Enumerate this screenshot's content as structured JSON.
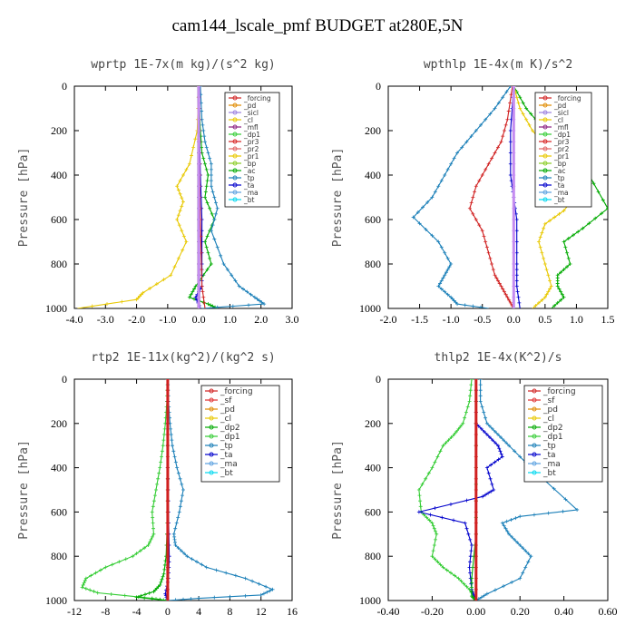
{
  "figure_title": "cam144_lscale_pmf  BUDGET at280E,5N",
  "chart_data": [
    {
      "type": "line",
      "title": "wprtp   1E-7x(m kg)/(s^2 kg)",
      "ylabel": "Pressure [hPa]",
      "xlim": [
        -4.0,
        3.0
      ],
      "ylim": [
        1000,
        0
      ],
      "xticks": [
        -4.0,
        -3.0,
        -2.0,
        -1.0,
        0.0,
        1.0,
        2.0,
        3.0
      ],
      "xtick_labels": [
        "-4.0",
        "-3.0",
        "-2.0",
        "-1.0",
        "0.0",
        "1.0",
        "2.0",
        "3.0"
      ],
      "yticks": [
        0,
        200,
        400,
        600,
        800,
        1000
      ],
      "ytick_labels": [
        "0",
        "200",
        "400",
        "600",
        "800",
        "1000"
      ],
      "legend_position": "top-right",
      "legend": [
        "_forcing",
        "_pd",
        "_sicl",
        "_cl",
        "_mfl",
        "_dp1",
        "_pr3",
        "_pr2",
        "_pr1",
        "_bp",
        "_ac",
        "_tp",
        "_ta",
        "_ma",
        "_bt"
      ],
      "series": [
        {
          "name": "_forcing",
          "color": "#000000",
          "x": [
            0,
            0,
            0,
            0,
            0,
            0
          ],
          "y": [
            0,
            200,
            400,
            600,
            800,
            1000
          ]
        },
        {
          "name": "_pr1",
          "color": "#e8c800",
          "x": [
            0,
            -0.05,
            -0.3,
            -0.7,
            -0.5,
            -0.7,
            -0.4,
            -0.9,
            -1.8,
            -2.0,
            -3.9
          ],
          "y": [
            0,
            200,
            350,
            450,
            520,
            600,
            700,
            850,
            930,
            960,
            1000
          ]
        },
        {
          "name": "_ac",
          "color": "#00aa00",
          "x": [
            0,
            0.05,
            0.1,
            0.3,
            0.2,
            0.5,
            0.2,
            0.4,
            -0.1,
            -0.3,
            0.3,
            0.6
          ],
          "y": [
            0,
            200,
            300,
            400,
            500,
            600,
            700,
            800,
            900,
            950,
            980,
            1000
          ]
        },
        {
          "name": "_tp",
          "color": "#1a7fb8",
          "x": [
            0.05,
            0.1,
            0.2,
            0.4,
            0.4,
            0.6,
            0.4,
            0.8,
            1.3,
            1.8,
            2.1,
            0.1
          ],
          "y": [
            0,
            150,
            250,
            350,
            450,
            550,
            650,
            800,
            900,
            950,
            980,
            1000
          ]
        },
        {
          "name": "_ta",
          "color": "#0000cc",
          "x": [
            0,
            0.02,
            0.05,
            0.1,
            0.1,
            0.1,
            -0.1,
            0.05
          ],
          "y": [
            0,
            200,
            400,
            600,
            800,
            900,
            950,
            1000
          ]
        },
        {
          "name": "_dp1",
          "color": "#d02020",
          "x": [
            0,
            0.02,
            0.03,
            0.05,
            0.1,
            0.2
          ],
          "y": [
            0,
            200,
            400,
            600,
            900,
            1000
          ]
        },
        {
          "name": "_pd",
          "color": "#c58cf0",
          "x": [
            0,
            0,
            0,
            0,
            0,
            0
          ],
          "y": [
            0,
            200,
            400,
            600,
            800,
            1000
          ]
        }
      ]
    },
    {
      "type": "line",
      "title": "wpthlp   1E-4x(m K)/s^2",
      "ylabel": "Pressure [hPa]",
      "xlim": [
        -2.0,
        1.5
      ],
      "ylim": [
        1000,
        0
      ],
      "xticks": [
        -2.0,
        -1.5,
        -1.0,
        -0.5,
        0.0,
        0.5,
        1.0,
        1.5
      ],
      "xtick_labels": [
        "-2.0",
        "-1.5",
        "-1.0",
        "-0.5",
        "0.0",
        "0.5",
        "1.0",
        "1.5"
      ],
      "yticks": [
        0,
        200,
        400,
        600,
        800,
        1000
      ],
      "ytick_labels": [
        "0",
        "200",
        "400",
        "600",
        "800",
        "1000"
      ],
      "legend_position": "top-right",
      "legend": [
        "_forcing",
        "_pd",
        "_sicl",
        "_cl",
        "_mfl",
        "_dp1",
        "_pr3",
        "_pr2",
        "_pr1",
        "_bp",
        "_ac",
        "_tp",
        "_ta",
        "_ma",
        "_bt"
      ],
      "series": [
        {
          "name": "_tp",
          "color": "#1a7fb8",
          "x": [
            -0.05,
            -0.3,
            -0.6,
            -0.9,
            -1.1,
            -1.3,
            -1.6,
            -1.2,
            -1.0,
            -1.1,
            -1.2,
            -1.0,
            -0.9,
            -0.4
          ],
          "y": [
            0,
            100,
            200,
            300,
            400,
            500,
            590,
            700,
            800,
            850,
            900,
            950,
            980,
            1000
          ]
        },
        {
          "name": "_dp1",
          "color": "#d02020",
          "x": [
            -0.02,
            -0.1,
            -0.2,
            -0.4,
            -0.6,
            -0.7,
            -0.5,
            -0.4,
            -0.3,
            -0.2,
            -0.1,
            0
          ],
          "y": [
            0,
            150,
            250,
            350,
            450,
            550,
            650,
            750,
            850,
            900,
            950,
            1000
          ]
        },
        {
          "name": "_ac",
          "color": "#00aa00",
          "x": [
            0,
            0.2,
            0.5,
            0.8,
            1.2,
            1.5,
            1.1,
            0.8,
            0.9,
            0.7,
            0.7,
            0.8,
            0.6
          ],
          "y": [
            0,
            100,
            200,
            300,
            400,
            550,
            640,
            700,
            800,
            850,
            900,
            950,
            1000
          ]
        },
        {
          "name": "_pr1",
          "color": "#e8c800",
          "x": [
            0,
            0.1,
            0.3,
            0.6,
            1.1,
            0.8,
            0.5,
            0.4,
            0.5,
            0.6,
            0.5,
            0.3
          ],
          "y": [
            0,
            100,
            200,
            300,
            450,
            560,
            620,
            700,
            800,
            900,
            950,
            1000
          ]
        },
        {
          "name": "_ta",
          "color": "#0000cc",
          "x": [
            0,
            -0.05,
            -0.05,
            0,
            0.05,
            0.05,
            0.05,
            0.1
          ],
          "y": [
            0,
            200,
            400,
            500,
            600,
            800,
            900,
            1000
          ]
        },
        {
          "name": "_pd",
          "color": "#c58cf0",
          "x": [
            0,
            0,
            0,
            0,
            0,
            0
          ],
          "y": [
            0,
            200,
            400,
            600,
            800,
            1000
          ]
        }
      ]
    },
    {
      "type": "line",
      "title": "rtp2   1E-11x(kg^2)/(kg^2 s)",
      "ylabel": "Pressure [hPa]",
      "xlim": [
        -12,
        16
      ],
      "ylim": [
        1000,
        0
      ],
      "xticks": [
        -12,
        -8,
        -4,
        0,
        4,
        8,
        12,
        16
      ],
      "xtick_labels": [
        "-12",
        "-8",
        "-4",
        "0",
        "4",
        "8",
        "12",
        "16"
      ],
      "yticks": [
        0,
        200,
        400,
        600,
        800,
        1000
      ],
      "ytick_labels": [
        "0",
        "200",
        "400",
        "600",
        "800",
        "1000"
      ],
      "legend_position": "top-right",
      "legend": [
        "_forcing",
        "_sf",
        "_pd",
        "_cl",
        "_dp2",
        "_dp1",
        "_tp",
        "_ta",
        "_ma",
        "_bt"
      ],
      "series": [
        {
          "name": "_dp1",
          "color": "#33cc33",
          "x": [
            0,
            -0.1,
            -0.3,
            -0.6,
            -1.0,
            -1.5,
            -2.0,
            -1.8,
            -2.5,
            -4.5,
            -8.0,
            -10.5,
            -11.0,
            -9.0,
            -2.0,
            0
          ],
          "y": [
            0,
            100,
            200,
            300,
            400,
            500,
            600,
            700,
            750,
            800,
            850,
            900,
            940,
            965,
            990,
            1000
          ]
        },
        {
          "name": "_tp",
          "color": "#1a7fb8",
          "x": [
            0,
            0.1,
            0.3,
            0.6,
            1.2,
            2.0,
            1.5,
            0.8,
            1.0,
            2.5,
            5.0,
            10.0,
            13.5,
            12.0,
            4.0,
            0
          ],
          "y": [
            0,
            100,
            200,
            300,
            400,
            500,
            600,
            700,
            750,
            800,
            850,
            900,
            950,
            975,
            990,
            1000
          ]
        },
        {
          "name": "_dp2",
          "color": "#00aa00",
          "x": [
            0,
            0,
            0,
            -0.2,
            -0.5,
            -1.0,
            -1.8,
            -4.0,
            0
          ],
          "y": [
            0,
            400,
            600,
            800,
            880,
            930,
            960,
            985,
            1000
          ]
        },
        {
          "name": "_ta",
          "color": "#0000cc",
          "x": [
            0,
            0,
            0.1,
            0.2,
            0.1,
            -0.3,
            0
          ],
          "y": [
            0,
            400,
            600,
            800,
            900,
            970,
            1000
          ]
        },
        {
          "name": "_forcing",
          "color": "#d02020",
          "x": [
            0,
            0,
            0,
            0,
            0,
            0
          ],
          "y": [
            0,
            200,
            400,
            600,
            800,
            1000
          ]
        }
      ]
    },
    {
      "type": "line",
      "title": "thlp2   1E-4x(K^2)/s",
      "ylabel": "Pressure [hPa]",
      "xlim": [
        -0.4,
        0.6
      ],
      "ylim": [
        1000,
        0
      ],
      "xticks": [
        -0.4,
        -0.2,
        0.0,
        0.2,
        0.4,
        0.6
      ],
      "xtick_labels": [
        "-0.40",
        "-0.20",
        "0.00",
        "0.20",
        "0.40",
        "0.60"
      ],
      "yticks": [
        0,
        200,
        400,
        600,
        800,
        1000
      ],
      "ytick_labels": [
        "0",
        "200",
        "400",
        "600",
        "800",
        "1000"
      ],
      "legend_position": "top-right",
      "legend": [
        "_forcing",
        "_sf",
        "_pd",
        "_cl",
        "_dp2",
        "_dp1",
        "_tp",
        "_ta",
        "_ma",
        "_bt"
      ],
      "series": [
        {
          "name": "_dp1",
          "color": "#33cc33",
          "x": [
            -0.02,
            -0.03,
            -0.06,
            -0.1,
            -0.15,
            -0.2,
            -0.26,
            -0.25,
            -0.2,
            -0.18,
            -0.2,
            -0.15,
            -0.08,
            -0.03,
            0
          ],
          "y": [
            0,
            100,
            200,
            250,
            300,
            400,
            500,
            600,
            650,
            700,
            800,
            850,
            900,
            950,
            1000
          ]
        },
        {
          "name": "_tp",
          "color": "#1a7fb8",
          "x": [
            0.02,
            0.02,
            0.05,
            0.1,
            0.15,
            0.25,
            0.46,
            0.2,
            0.12,
            0.15,
            0.2,
            0.25,
            0.2,
            0.05,
            0
          ],
          "y": [
            0,
            100,
            200,
            250,
            300,
            400,
            590,
            620,
            650,
            700,
            750,
            800,
            900,
            970,
            1000
          ]
        },
        {
          "name": "_ta",
          "color": "#0000cc",
          "x": [
            0,
            0,
            0.05,
            0.1,
            0.12,
            0.05,
            0.08,
            0.03,
            -0.26,
            -0.05,
            -0.02,
            -0.03,
            -0.02,
            0
          ],
          "y": [
            0,
            200,
            250,
            300,
            350,
            400,
            500,
            530,
            600,
            650,
            750,
            850,
            950,
            1000
          ]
        },
        {
          "name": "_dp2",
          "color": "#00aa00",
          "x": [
            0,
            0,
            0,
            -0.02,
            -0.02,
            0
          ],
          "y": [
            0,
            400,
            700,
            900,
            980,
            1000
          ]
        },
        {
          "name": "_forcing",
          "color": "#d02020",
          "x": [
            0,
            0,
            0,
            0,
            0,
            0
          ],
          "y": [
            0,
            200,
            400,
            600,
            800,
            1000
          ]
        }
      ]
    }
  ],
  "legend_colors": {
    "_forcing": "#d02020",
    "_sf": "#e03030",
    "_pd": "#e08a00",
    "_sicl": "#9a7fe0",
    "_cl": "#e8c800",
    "_mfl": "#8b2080",
    "_dp1": "#33cc33",
    "_dp2": "#00aa00",
    "_pr3": "#d62020",
    "_pr2": "#e06060",
    "_pr1": "#e8c800",
    "_bp": "#88cc22",
    "_ac": "#00aa00",
    "_tp": "#1a7fb8",
    "_ta": "#0000cc",
    "_ma": "#5aa0e0",
    "_bt": "#00d8f0"
  }
}
